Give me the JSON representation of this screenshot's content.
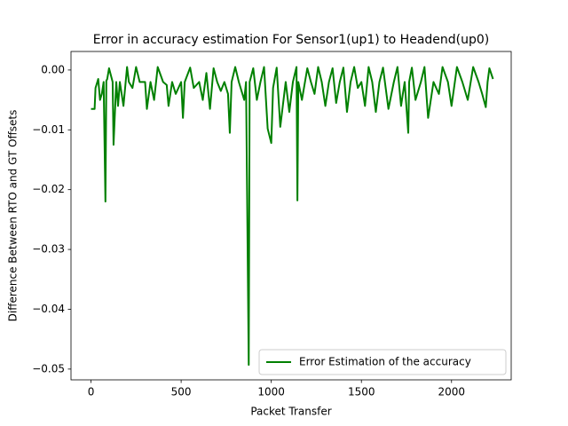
{
  "chart_data": {
    "type": "line",
    "title": "Error in accuracy estimation For Sensor1(up1) to Headend(up0)",
    "xlabel": "Packet Transfer",
    "ylabel": "Difference Between RTO and GT Offsets",
    "x": [
      0,
      20,
      25,
      40,
      50,
      60,
      70,
      80,
      85,
      90,
      100,
      120,
      125,
      140,
      150,
      160,
      180,
      200,
      210,
      230,
      250,
      270,
      300,
      310,
      330,
      350,
      370,
      400,
      420,
      430,
      450,
      470,
      500,
      510,
      520,
      550,
      570,
      600,
      620,
      640,
      660,
      680,
      700,
      720,
      740,
      760,
      770,
      780,
      800,
      820,
      850,
      860,
      875,
      880,
      900,
      920,
      940,
      960,
      980,
      1000,
      1010,
      1030,
      1050,
      1080,
      1100,
      1120,
      1140,
      1145,
      1150,
      1170,
      1200,
      1220,
      1240,
      1260,
      1280,
      1300,
      1320,
      1340,
      1360,
      1380,
      1400,
      1420,
      1440,
      1460,
      1480,
      1500,
      1520,
      1540,
      1560,
      1580,
      1600,
      1620,
      1650,
      1680,
      1700,
      1720,
      1740,
      1760,
      1765,
      1780,
      1800,
      1830,
      1850,
      1870,
      1900,
      1930,
      1950,
      1980,
      2000,
      2030,
      2060,
      2090,
      2120,
      2150,
      2170,
      2190,
      2200,
      2210,
      2230
    ],
    "series": [
      {
        "name": "Error Estimation of the accuracy",
        "color": "#008000",
        "values": [
          -0.0065,
          -0.0065,
          -0.003,
          -0.0015,
          -0.005,
          -0.004,
          -0.002,
          -0.022,
          -0.0018,
          -0.0015,
          0.0003,
          -0.002,
          -0.0125,
          -0.002,
          -0.006,
          -0.002,
          -0.006,
          0.0005,
          -0.002,
          -0.003,
          0.0005,
          -0.002,
          -0.002,
          -0.0065,
          -0.002,
          -0.005,
          0.0005,
          -0.002,
          -0.0025,
          -0.006,
          -0.002,
          -0.004,
          -0.002,
          -0.008,
          -0.002,
          0.0004,
          -0.003,
          -0.002,
          -0.005,
          -0.0005,
          -0.0065,
          0.0003,
          -0.002,
          -0.0035,
          -0.002,
          -0.004,
          -0.0105,
          -0.002,
          0.0005,
          -0.002,
          -0.005,
          -0.002,
          -0.0493,
          -0.002,
          0.0003,
          -0.005,
          -0.002,
          0.0005,
          -0.0098,
          -0.0122,
          -0.003,
          0.0004,
          -0.0095,
          -0.002,
          -0.007,
          -0.002,
          0.0005,
          -0.0218,
          -0.002,
          -0.005,
          0.0003,
          -0.002,
          -0.004,
          0.0005,
          -0.002,
          -0.006,
          -0.002,
          0.0003,
          -0.0055,
          -0.002,
          0.0004,
          -0.007,
          -0.002,
          0.0005,
          -0.003,
          -0.002,
          -0.006,
          0.0005,
          -0.002,
          -0.007,
          -0.002,
          0.0004,
          -0.0065,
          -0.002,
          0.0005,
          -0.006,
          -0.002,
          -0.0105,
          -0.002,
          0.0004,
          -0.005,
          -0.002,
          0.0005,
          -0.008,
          -0.002,
          -0.004,
          0.0005,
          -0.002,
          -0.006,
          0.0005,
          -0.002,
          -0.005,
          0.0005,
          -0.002,
          -0.004,
          -0.0062,
          -0.002,
          0.0003,
          -0.0015
        ]
      }
    ],
    "xlim": [
      -111,
      2331
    ],
    "ylim": [
      -0.0518,
      0.0031
    ],
    "xticks": [
      0,
      500,
      1000,
      1500,
      2000
    ],
    "yticks": [
      {
        "value": 0,
        "label": "0.00"
      },
      {
        "value": -0.01,
        "label": "−0.01"
      },
      {
        "value": -0.02,
        "label": "−0.02"
      },
      {
        "value": -0.03,
        "label": "−0.03"
      },
      {
        "value": -0.04,
        "label": "−0.04"
      },
      {
        "value": -0.05,
        "label": "−0.05"
      }
    ],
    "legend": "lower right"
  }
}
